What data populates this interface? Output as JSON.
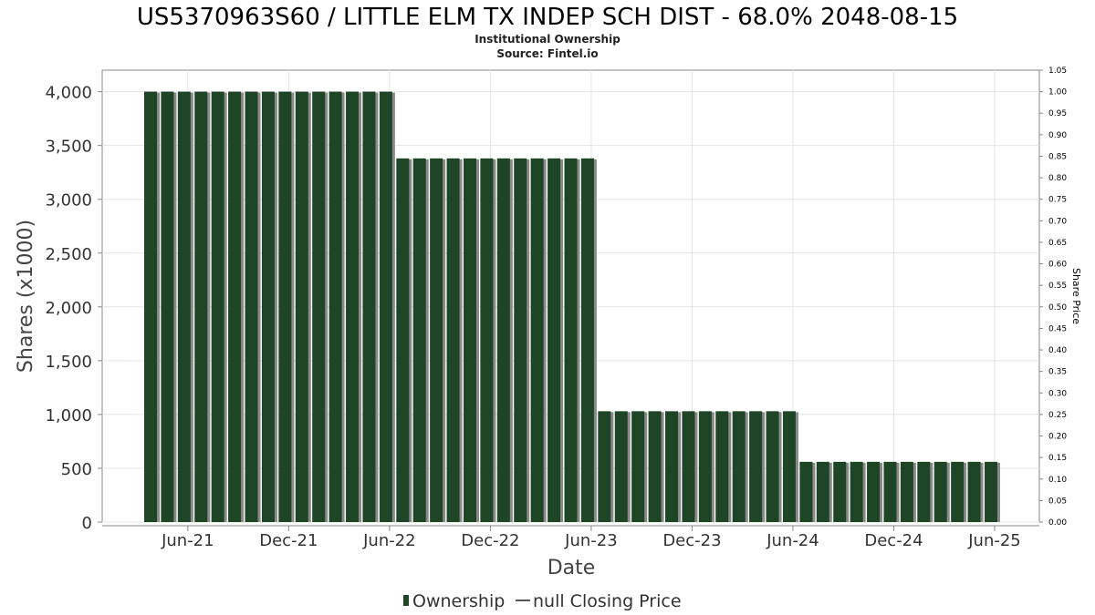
{
  "chart_data": {
    "type": "bar",
    "title": "US5370963S60 / LITTLE ELM TX INDEP SCH DIST - 68.0% 2048-08-15",
    "subtitle": "Institutional Ownership",
    "source": "Source: Fintel.io",
    "xlabel": "Date",
    "ylabel": "Shares (x1000)",
    "y2label": "Share Price",
    "ylim": [
      0,
      4200
    ],
    "y2lim": [
      0,
      1.05
    ],
    "yticks": [
      "0",
      "500",
      "1,000",
      "1,500",
      "2,000",
      "2,500",
      "3,000",
      "3,500",
      "4,000"
    ],
    "ytick_values": [
      0,
      500,
      1000,
      1500,
      2000,
      2500,
      3000,
      3500,
      4000
    ],
    "y2ticks": [
      "0.00",
      "0.05",
      "0.10",
      "0.15",
      "0.20",
      "0.25",
      "0.30",
      "0.35",
      "0.40",
      "0.45",
      "0.50",
      "0.55",
      "0.60",
      "0.65",
      "0.70",
      "0.75",
      "0.80",
      "0.85",
      "0.90",
      "0.95",
      "1.00",
      "1.05"
    ],
    "xticks": [
      "Jun-21",
      "Dec-21",
      "Jun-22",
      "Dec-22",
      "Jun-23",
      "Dec-23",
      "Jun-24",
      "Dec-24",
      "Jun-25"
    ],
    "grid": true,
    "series": [
      {
        "name": "Ownership",
        "color": "#1e4526",
        "shadow_color": "#8a8a8a",
        "values": [
          4000,
          4000,
          4000,
          4000,
          4000,
          4000,
          4000,
          4000,
          4000,
          4000,
          4000,
          4000,
          4000,
          4000,
          4000,
          3380,
          3380,
          3380,
          3380,
          3380,
          3380,
          3380,
          3380,
          3380,
          3380,
          3380,
          3380,
          1030,
          1030,
          1030,
          1030,
          1030,
          1030,
          1030,
          1030,
          1030,
          1030,
          1030,
          1030,
          560,
          560,
          560,
          560,
          560,
          560,
          560,
          560,
          560,
          560,
          560,
          560
        ]
      },
      {
        "name": "null Closing Price",
        "color": "#555555",
        "values": []
      }
    ],
    "legend": {
      "position": "bottom-center",
      "items": [
        "Ownership",
        "null Closing Price"
      ]
    }
  }
}
